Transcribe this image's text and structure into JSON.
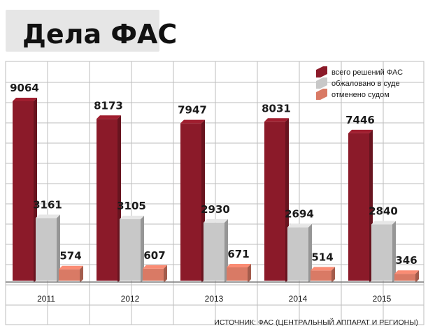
{
  "title": "Дела ФАС",
  "source": "ИСТОЧНИК: ФАС (ЦЕНТРАЛЬНЫЙ АППАРАТ И РЕГИОНЫ)",
  "colors": {
    "total": "#8b1a29",
    "appealed": "#c8c8c8",
    "cancelled": "#d97a65",
    "grid": "#bdbdbd",
    "title_bg": "#e6e6e6"
  },
  "chart_data": {
    "type": "bar",
    "title": "Дела ФАС",
    "categories": [
      "2011",
      "2012",
      "2013",
      "2014",
      "2015"
    ],
    "series": [
      {
        "name": "всего решений ФАС",
        "values": [
          9064,
          8173,
          7947,
          8031,
          7446
        ]
      },
      {
        "name": "обжаловано в суде",
        "values": [
          3161,
          3105,
          2930,
          2694,
          2840
        ]
      },
      {
        "name": "отменено судом",
        "values": [
          574,
          607,
          671,
          514,
          346
        ]
      }
    ],
    "legend_position": "top-right",
    "grid": true
  }
}
